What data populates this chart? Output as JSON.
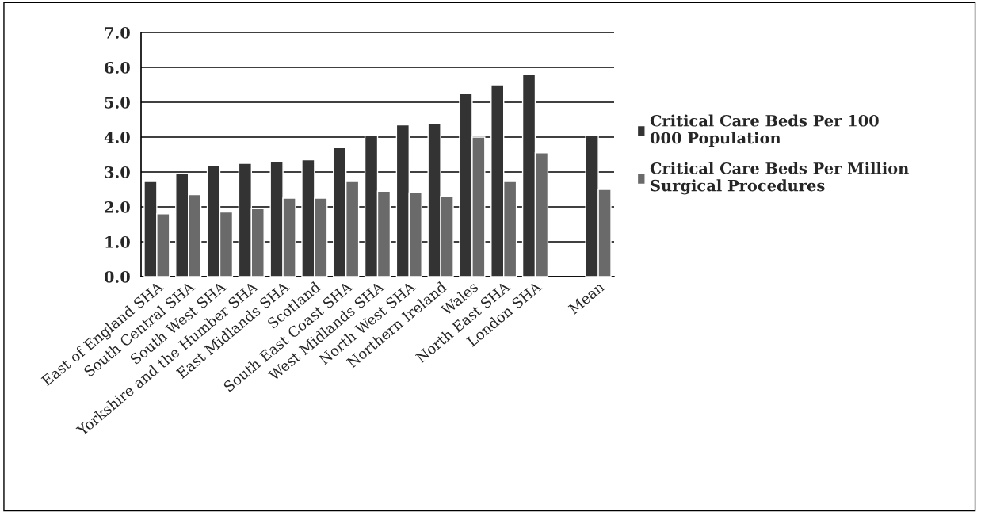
{
  "chart_data": {
    "type": "bar",
    "categories": [
      "East of England SHA",
      "South Central SHA",
      "South West SHA",
      "Yorkshire and the Humber SHA",
      "East Midlands SHA",
      "Scotland",
      "South East Coast SHA",
      "West Midlands SHA",
      "North West SHA",
      "Northern Ireland",
      "Wales",
      "North East SHA",
      "London SHA",
      null,
      "Mean"
    ],
    "series": [
      {
        "name": "Critical Care Beds Per 100 000 Population",
        "color": "#333333",
        "values": [
          2.75,
          2.95,
          3.2,
          3.25,
          3.3,
          3.35,
          3.7,
          4.05,
          4.35,
          4.4,
          5.25,
          5.5,
          5.8,
          null,
          4.05
        ]
      },
      {
        "name": "Critical Care Beds Per Million Surgical Procedures",
        "color": "#6a6a6a",
        "values": [
          1.8,
          2.35,
          1.85,
          1.95,
          2.25,
          2.25,
          2.75,
          2.45,
          2.4,
          2.3,
          4.0,
          2.75,
          3.55,
          null,
          2.5
        ]
      }
    ],
    "ylim": [
      0,
      7
    ],
    "yticks": [
      {
        "value": 0,
        "label": "0.0"
      },
      {
        "value": 1,
        "label": "1.0"
      },
      {
        "value": 2,
        "label": "2.0"
      },
      {
        "value": 3,
        "label": "3.0"
      },
      {
        "value": 4,
        "label": "4.0"
      },
      {
        "value": 5,
        "label": "5.0"
      },
      {
        "value": 6,
        "label": "6.0"
      },
      {
        "value": 7,
        "label": "7.0"
      }
    ],
    "grid": "y",
    "legend": "right"
  }
}
